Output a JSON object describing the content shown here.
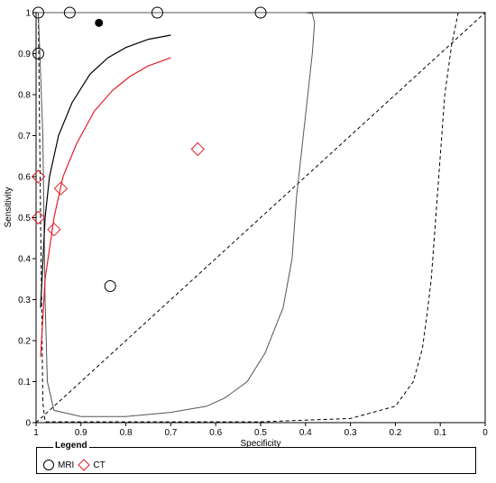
{
  "chart_data": {
    "type": "scatter",
    "title": "",
    "xlabel": "Specificity",
    "ylabel": "Sensitivity",
    "xlim": [
      1,
      0
    ],
    "ylim": [
      0,
      1
    ],
    "x_reversed": true,
    "xticks": [
      1,
      0.9,
      0.8,
      0.7,
      0.6,
      0.5,
      0.4,
      0.3,
      0.2,
      0.1,
      0
    ],
    "xtick_labels": [
      "1",
      "0.9",
      "0.8",
      "0.7",
      "0.6",
      "0.5",
      "0.4",
      "0.3",
      "0.2",
      "0.1",
      "0"
    ],
    "yticks": [
      0,
      0.1,
      0.2,
      0.3,
      0.4,
      0.5,
      0.6,
      0.7,
      0.8,
      0.9,
      1
    ],
    "ytick_labels": [
      "0",
      "0.1",
      "0.2",
      "0.3",
      "0.4",
      "0.5",
      "0.6",
      "0.7",
      "0.8",
      "0.9",
      "1"
    ],
    "grid": false,
    "legend": {
      "title": "Legend",
      "placement": "bottom",
      "entries": [
        {
          "label": "MRI",
          "marker": "circle",
          "color": "#000000"
        },
        {
          "label": "CT",
          "marker": "diamond",
          "color": "#e0202a"
        }
      ]
    },
    "series": [
      {
        "name": "MRI",
        "marker": "circle",
        "color": "#000000",
        "points": [
          {
            "x": 0.995,
            "y": 1.0
          },
          {
            "x": 0.925,
            "y": 1.0
          },
          {
            "x": 0.73,
            "y": 1.0
          },
          {
            "x": 0.5,
            "y": 1.0
          },
          {
            "x": 0.995,
            "y": 0.9
          },
          {
            "x": 0.835,
            "y": 0.333
          }
        ]
      },
      {
        "name": "CT",
        "marker": "diamond",
        "color": "#e0202a",
        "points": [
          {
            "x": 0.995,
            "y": 0.6
          },
          {
            "x": 0.945,
            "y": 0.571
          },
          {
            "x": 0.995,
            "y": 0.5
          },
          {
            "x": 0.96,
            "y": 0.471
          },
          {
            "x": 0.64,
            "y": 0.667
          }
        ]
      }
    ],
    "summary_point": {
      "x": 0.86,
      "y": 0.975,
      "color": "#000000"
    },
    "sroc_curves": [
      {
        "name": "MRI",
        "color": "#000000",
        "points": [
          [
            0.99,
            0.28
          ],
          [
            0.98,
            0.5
          ],
          [
            0.97,
            0.6
          ],
          [
            0.95,
            0.7
          ],
          [
            0.92,
            0.78
          ],
          [
            0.88,
            0.85
          ],
          [
            0.84,
            0.89
          ],
          [
            0.8,
            0.915
          ],
          [
            0.75,
            0.935
          ],
          [
            0.7,
            0.945
          ]
        ]
      },
      {
        "name": "CT",
        "color": "#e0202a",
        "points": [
          [
            0.99,
            0.16
          ],
          [
            0.98,
            0.35
          ],
          [
            0.96,
            0.5
          ],
          [
            0.94,
            0.6
          ],
          [
            0.91,
            0.68
          ],
          [
            0.87,
            0.76
          ],
          [
            0.83,
            0.81
          ],
          [
            0.79,
            0.845
          ],
          [
            0.75,
            0.87
          ],
          [
            0.7,
            0.89
          ]
        ]
      }
    ],
    "confidence_region": {
      "color": "#000000",
      "points": [
        [
          0.995,
          1.0
        ],
        [
          0.985,
          0.7
        ],
        [
          0.98,
          0.3
        ],
        [
          0.975,
          0.1
        ],
        [
          0.96,
          0.03
        ],
        [
          0.9,
          0.015
        ],
        [
          0.8,
          0.015
        ],
        [
          0.7,
          0.025
        ],
        [
          0.62,
          0.04
        ],
        [
          0.58,
          0.06
        ],
        [
          0.53,
          0.1
        ],
        [
          0.49,
          0.17
        ],
        [
          0.45,
          0.28
        ],
        [
          0.43,
          0.4
        ],
        [
          0.42,
          0.55
        ],
        [
          0.405,
          0.7
        ],
        [
          0.395,
          0.8
        ],
        [
          0.385,
          0.9
        ],
        [
          0.38,
          0.975
        ],
        [
          0.385,
          0.998
        ],
        [
          0.4,
          1.0
        ],
        [
          0.6,
          1.0
        ],
        [
          0.8,
          1.0
        ],
        [
          0.9,
          1.0
        ],
        [
          0.995,
          1.0
        ]
      ]
    },
    "prediction_region": {
      "color": "#000000",
      "style": "dashed",
      "points": [
        [
          0.995,
          1.0
        ],
        [
          0.99,
          0.5
        ],
        [
          0.985,
          0.05
        ],
        [
          0.98,
          0.002
        ],
        [
          0.5,
          0.002
        ],
        [
          0.3,
          0.01
        ],
        [
          0.2,
          0.04
        ],
        [
          0.16,
          0.1
        ],
        [
          0.14,
          0.18
        ],
        [
          0.13,
          0.26
        ],
        [
          0.12,
          0.35
        ],
        [
          0.11,
          0.5
        ],
        [
          0.1,
          0.65
        ],
        [
          0.09,
          0.8
        ],
        [
          0.075,
          0.92
        ],
        [
          0.06,
          1.0
        ]
      ]
    },
    "reference_line": {
      "from": [
        1,
        0
      ],
      "to": [
        0,
        1
      ],
      "style": "dashed",
      "color": "#000000"
    }
  }
}
